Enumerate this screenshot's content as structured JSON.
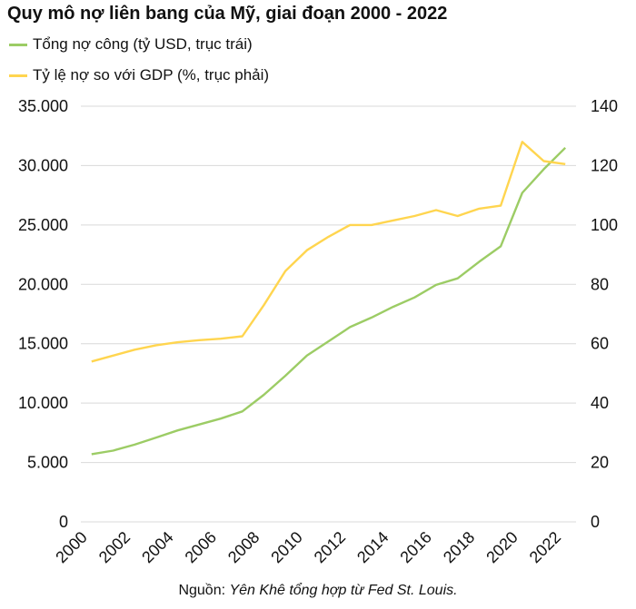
{
  "chart_data": {
    "type": "line",
    "title": "Quy mô nợ liên bang của Mỹ, giai đoạn 2000 - 2022",
    "x": [
      2000.5,
      2001.5,
      2002.5,
      2003.5,
      2004.5,
      2005.5,
      2006.5,
      2007.5,
      2008.5,
      2009.5,
      2010.5,
      2011.5,
      2012.5,
      2013.5,
      2014.5,
      2015.5,
      2016.5,
      2017.5,
      2018.5,
      2019.5,
      2020.5,
      2021.5,
      2022.5
    ],
    "x_ticks": [
      "2000",
      "2002",
      "2004",
      "2006",
      "2008",
      "2010",
      "2012",
      "2014",
      "2016",
      "2018",
      "2020",
      "2022"
    ],
    "x_tick_values": [
      2000,
      2002,
      2004,
      2006,
      2008,
      2010,
      2012,
      2014,
      2016,
      2018,
      2020,
      2022
    ],
    "xlim": [
      2000,
      2023
    ],
    "series": [
      {
        "name": "Tổng nợ công (tỷ USD, trục trái)",
        "axis": "left",
        "color": "#9ccc65",
        "values": [
          5700,
          6000,
          6500,
          7100,
          7700,
          8200,
          8700,
          9300,
          10700,
          12300,
          14000,
          15200,
          16400,
          17200,
          18100,
          18900,
          19950,
          20500,
          21900,
          23200,
          27700,
          29700,
          31500
        ]
      },
      {
        "name": "Tỷ lệ nợ so với GDP (%, trục phải)",
        "axis": "right",
        "color": "#ffd54f",
        "values": [
          54,
          56,
          58,
          59.5,
          60.5,
          61.2,
          61.7,
          62.5,
          73,
          84.5,
          91.5,
          96,
          100,
          100,
          101.5,
          103,
          105,
          103,
          105.5,
          106.5,
          128,
          121.5,
          120.5
        ]
      }
    ],
    "y_left": {
      "ylim": [
        0,
        35000
      ],
      "ticks": [
        0,
        5000,
        10000,
        15000,
        20000,
        25000,
        30000,
        35000
      ],
      "tick_labels": [
        "0",
        "5.000",
        "10.000",
        "15.000",
        "20.000",
        "25.000",
        "30.000",
        "35.000"
      ]
    },
    "y_right": {
      "ylim": [
        0,
        140
      ],
      "ticks": [
        0,
        20,
        40,
        60,
        80,
        100,
        120,
        140
      ],
      "tick_labels": [
        "0",
        "20",
        "40",
        "60",
        "80",
        "100",
        "120",
        "140"
      ]
    },
    "grid": "horizontal",
    "legend_position": "top-left",
    "source_prefix": "Nguồn: ",
    "source_text": "Yên Khê tổng hợp từ Fed St. Louis."
  }
}
